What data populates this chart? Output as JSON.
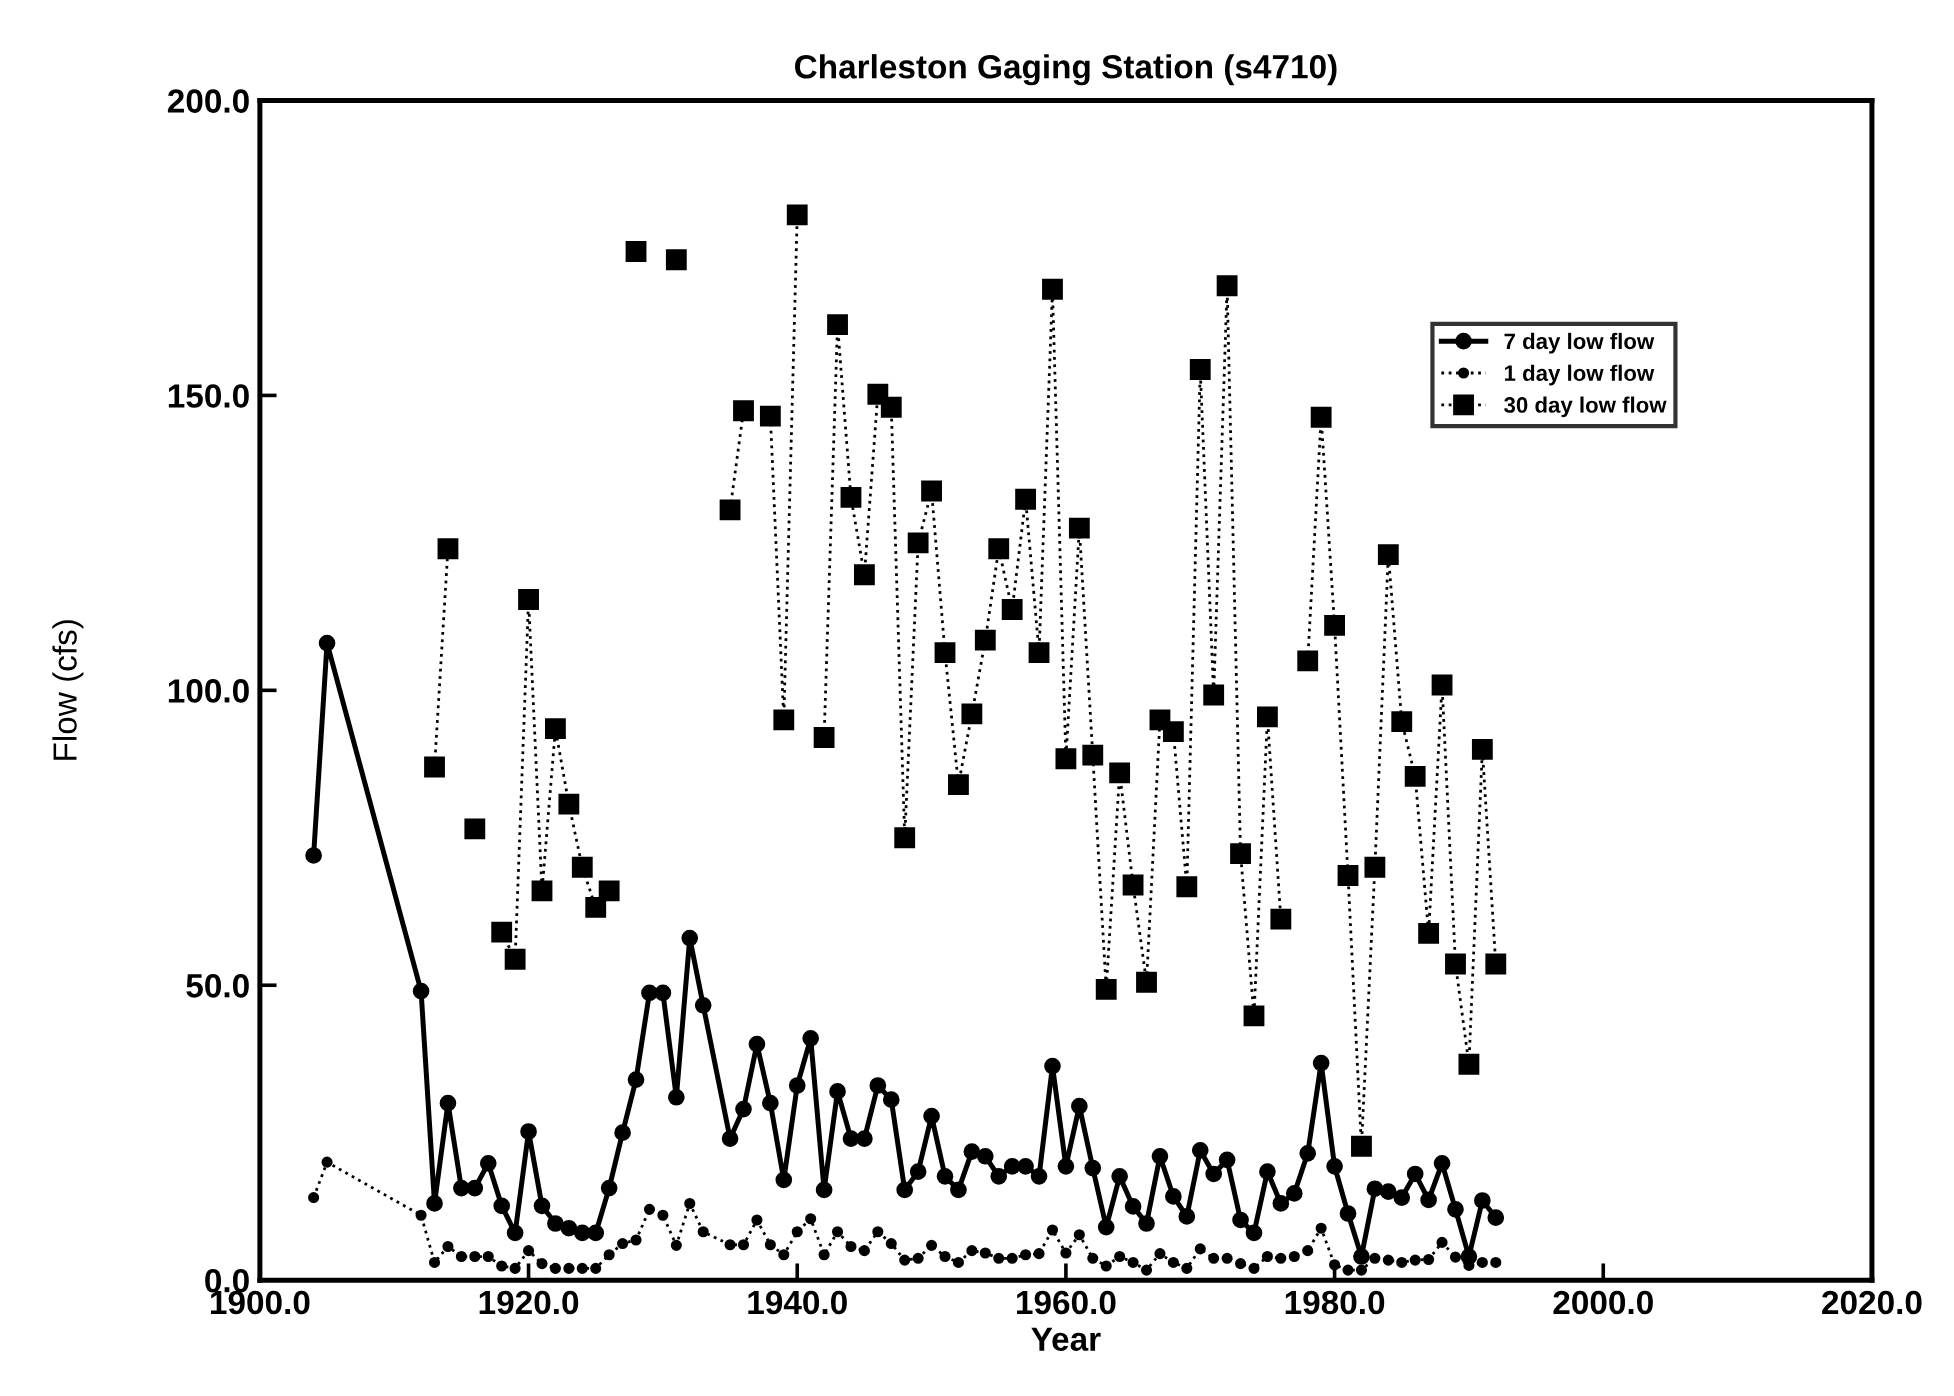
{
  "chart_data": {
    "type": "line",
    "title": "Charleston Gaging Station (s4710)",
    "xlabel": "Year",
    "ylabel": "Flow (cfs)",
    "xlim": [
      1900,
      2020
    ],
    "xticks": [
      {
        "value": 1900,
        "label": "1900.0"
      },
      {
        "value": 1920,
        "label": "1920.0"
      },
      {
        "value": 1940,
        "label": "1940.0"
      },
      {
        "value": 1960,
        "label": "1960.0"
      },
      {
        "value": 1980,
        "label": "1980.0"
      },
      {
        "value": 2000,
        "label": "2000.0"
      },
      {
        "value": 2020,
        "label": "2020.0"
      }
    ],
    "ylim": [
      0,
      200
    ],
    "yticks": [
      {
        "value": 0,
        "label": "0.0"
      },
      {
        "value": 50,
        "label": "50.0"
      },
      {
        "value": 100,
        "label": "100.0"
      },
      {
        "value": 150,
        "label": "150.0"
      },
      {
        "value": 200,
        "label": "200.0"
      }
    ],
    "grid": false,
    "legend": "top right",
    "series": [
      {
        "name": "7 day low flow",
        "color": "#000000",
        "marker": "circle",
        "line_style": "solid",
        "x": [
          1904,
          1905,
          1912,
          1913,
          1914,
          1915,
          1916,
          1917,
          1918,
          1919,
          1920,
          1921,
          1922,
          1923,
          1924,
          1925,
          1926,
          1927,
          1928,
          1929,
          1930,
          1931,
          1932,
          1933,
          1935,
          1936,
          1937,
          1938,
          1939,
          1940,
          1941,
          1942,
          1943,
          1944,
          1945,
          1946,
          1947,
          1948,
          1949,
          1950,
          1951,
          1952,
          1953,
          1954,
          1955,
          1956,
          1957,
          1958,
          1959,
          1960,
          1961,
          1962,
          1963,
          1964,
          1965,
          1966,
          1967,
          1968,
          1969,
          1970,
          1971,
          1972,
          1973,
          1974,
          1975,
          1976,
          1977,
          1978,
          1979,
          1980,
          1981,
          1982,
          1983,
          1984,
          1985,
          1986,
          1987,
          1988,
          1989,
          1990,
          1991,
          1992
        ],
        "values": [
          72,
          108,
          49,
          13,
          30,
          15.6,
          15.6,
          19.8,
          12.6,
          8,
          25.2,
          12.6,
          9.6,
          8.8,
          8,
          8,
          15.6,
          25,
          34,
          48.7,
          48.7,
          31,
          58,
          46.6,
          24,
          29,
          40,
          30,
          17,
          33,
          41,
          15.3,
          32,
          24,
          24,
          33,
          30.6,
          15.3,
          18.4,
          27.8,
          17.6,
          15.3,
          21.8,
          21,
          17.6,
          19.3,
          19.3,
          17.6,
          36.3,
          19.3,
          29.5,
          19,
          9,
          17.6,
          12.5,
          9.6,
          21,
          14.2,
          10.8,
          22,
          18,
          20.4,
          10.2,
          8,
          18.4,
          13,
          14.7,
          21.5,
          36.8,
          19.3,
          11.3,
          4,
          15.5,
          15,
          14,
          18,
          13.6,
          19.8,
          12,
          4,
          13.5,
          10.6
        ]
      },
      {
        "name": "1 day low flow",
        "color": "#000000",
        "marker": "circle",
        "line_style": "dotted",
        "x": [
          1904,
          1905,
          1912,
          1913,
          1914,
          1915,
          1916,
          1917,
          1918,
          1919,
          1920,
          1921,
          1922,
          1923,
          1924,
          1925,
          1926,
          1927,
          1928,
          1929,
          1930,
          1931,
          1932,
          1933,
          1935,
          1936,
          1937,
          1938,
          1939,
          1940,
          1941,
          1942,
          1943,
          1944,
          1945,
          1946,
          1947,
          1948,
          1949,
          1950,
          1951,
          1952,
          1953,
          1954,
          1955,
          1956,
          1957,
          1958,
          1959,
          1960,
          1961,
          1962,
          1963,
          1964,
          1965,
          1966,
          1967,
          1968,
          1969,
          1970,
          1971,
          1972,
          1973,
          1974,
          1975,
          1976,
          1977,
          1978,
          1979,
          1980,
          1981,
          1982,
          1983,
          1984,
          1985,
          1986,
          1987,
          1988,
          1989,
          1990,
          1991,
          1992
        ],
        "values": [
          14,
          20,
          11,
          3,
          5.7,
          4,
          4,
          4,
          2.4,
          2,
          5,
          2.8,
          2,
          2,
          2,
          2,
          4.3,
          6.2,
          6.8,
          12,
          11,
          5.9,
          13,
          8.2,
          6,
          6,
          10.2,
          6,
          4.3,
          8.2,
          10.4,
          4.3,
          8.2,
          5.7,
          5,
          8.2,
          6.2,
          3.4,
          3.7,
          5.9,
          4,
          3,
          5,
          4.6,
          3.7,
          3.7,
          4.3,
          4.5,
          8.5,
          4.6,
          7.7,
          3.7,
          2.4,
          4,
          3,
          1.7,
          4.5,
          3,
          2,
          5.3,
          3.7,
          3.7,
          2.8,
          2,
          4,
          3.7,
          4,
          5,
          8.8,
          2.6,
          1.7,
          1.7,
          3.7,
          3.4,
          3,
          3.4,
          3.5,
          6.4,
          3.9,
          2.5,
          3,
          3
        ]
      },
      {
        "name": "30 day low flow",
        "color": "#000000",
        "marker": "square",
        "line_style": "dotted",
        "x": [
          1913,
          1914,
          1915,
          1916,
          1917,
          1918,
          1919,
          1920,
          1921,
          1922,
          1923,
          1924,
          1925,
          1926,
          1927,
          1928,
          1929,
          1930,
          1931,
          1932,
          1933,
          1934,
          1935,
          1936,
          1937,
          1938,
          1939,
          1940,
          1941,
          1942,
          1943,
          1944,
          1945,
          1946,
          1947,
          1948,
          1949,
          1950,
          1951,
          1952,
          1953,
          1954,
          1955,
          1956,
          1957,
          1958,
          1959,
          1960,
          1961,
          1962,
          1963,
          1964,
          1965,
          1966,
          1967,
          1968,
          1969,
          1970,
          1971,
          1972,
          1973,
          1974,
          1975,
          1976,
          1977,
          1978,
          1979,
          1980,
          1981,
          1982,
          1983,
          1984,
          1985,
          1986,
          1987,
          1988,
          1989,
          1990,
          1991,
          1992
        ],
        "values": [
          87,
          124,
          null,
          76.5,
          null,
          59,
          54.4,
          115.4,
          66,
          93.5,
          80.7,
          70,
          63.2,
          66,
          null,
          174.4,
          null,
          null,
          173,
          null,
          null,
          null,
          130.6,
          147.4,
          null,
          146.5,
          95,
          180.6,
          null,
          92,
          162,
          132.7,
          119.6,
          150.2,
          148,
          75,
          125,
          133.8,
          106.4,
          84,
          96,
          108.5,
          124,
          113.7,
          132.4,
          106.4,
          168,
          88.4,
          127.5,
          89,
          49.3,
          86,
          67,
          50.5,
          95,
          93,
          66.7,
          154.4,
          99.2,
          168.6,
          72.3,
          44.8,
          95.5,
          61.2,
          null,
          105,
          146.3,
          111,
          68.6,
          22.7,
          70,
          123,
          94.7,
          85.4,
          58.8,
          100.9,
          53.6,
          36.6,
          90,
          53.6
        ]
      }
    ]
  }
}
